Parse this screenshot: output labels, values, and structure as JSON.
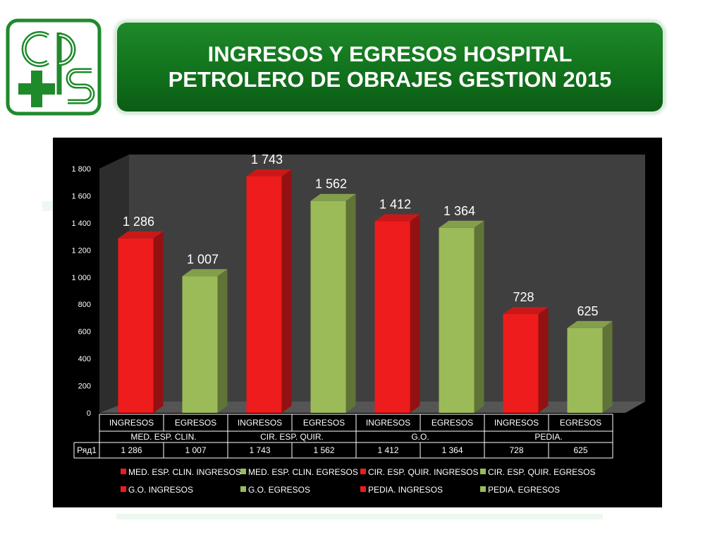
{
  "slide": {
    "title_line1": "INGRESOS Y EGRESOS HOSPITAL",
    "title_line2": "PETROLERO DE OBRAJES GESTION 2015",
    "logo": {
      "text": "cps",
      "icon": "cps-cross-logo",
      "color": "#1f8a2a"
    }
  },
  "colors": {
    "ingresos": "#ee1c1c",
    "egresos": "#9bbb59",
    "banner": "#10701b",
    "chart_background": "#000000",
    "plot_wall": "#3f3f3f"
  },
  "chart_data": {
    "type": "bar",
    "three_d": true,
    "series_name": "Ряд1",
    "groups": [
      "MED. ESP. CLIN.",
      "CIR. ESP. QUIR.",
      "G.O.",
      "PEDIA."
    ],
    "categories": [
      "INGRESOS",
      "EGRESOS",
      "INGRESOS",
      "EGRESOS",
      "INGRESOS",
      "EGRESOS",
      "INGRESOS",
      "EGRESOS"
    ],
    "values": [
      1286,
      1007,
      1743,
      1562,
      1412,
      1364,
      728,
      625
    ],
    "value_labels": [
      "1 286",
      "1 007",
      "1 743",
      "1 562",
      "1 412",
      "1 364",
      "728",
      "625"
    ],
    "bar_colors": [
      "ingresos",
      "egresos",
      "ingresos",
      "egresos",
      "ingresos",
      "egresos",
      "ingresos",
      "egresos"
    ],
    "ylim": [
      0,
      1800
    ],
    "yticks": [
      0,
      200,
      400,
      600,
      800,
      1000,
      1200,
      1400,
      1600,
      1800
    ],
    "ytick_labels": [
      "0",
      "200",
      "400",
      "600",
      "800",
      "1 000",
      "1 200",
      "1 400",
      "1 600",
      "1 800"
    ],
    "data_table": true,
    "legend_position": "bottom",
    "legend": [
      {
        "label": "MED. ESP. CLIN. INGRESOS",
        "color": "ingresos"
      },
      {
        "label": "MED. ESP. CLIN. EGRESOS",
        "color": "egresos"
      },
      {
        "label": "CIR. ESP. QUIR. INGRESOS",
        "color": "ingresos"
      },
      {
        "label": "CIR. ESP. QUIR. EGRESOS",
        "color": "egresos"
      },
      {
        "label": "G.O. INGRESOS",
        "color": "ingresos"
      },
      {
        "label": "G.O. EGRESOS",
        "color": "egresos"
      },
      {
        "label": "PEDIA. INGRESOS",
        "color": "ingresos"
      },
      {
        "label": "PEDIA. EGRESOS",
        "color": "egresos"
      }
    ]
  }
}
